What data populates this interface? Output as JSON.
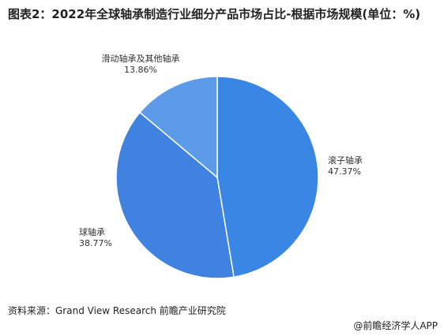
{
  "chart_data": {
    "type": "pie",
    "title": "图表2：2022年全球轴承制造行业细分产品市场占比-根据市场规模(单位：%)",
    "categories": [
      "滚子轴承",
      "球轴承",
      "滑动轴承及其他轴承"
    ],
    "values": [
      47.37,
      38.77,
      13.86
    ],
    "value_labels": [
      "47.37%",
      "38.77%",
      "13.86%"
    ],
    "colors": [
      "#3a86e4",
      "#3f82e0",
      "#5b9be8"
    ]
  },
  "source": "资料来源：Grand View Research 前瞻产业研究院",
  "footer": "@前瞻经济学人APP"
}
